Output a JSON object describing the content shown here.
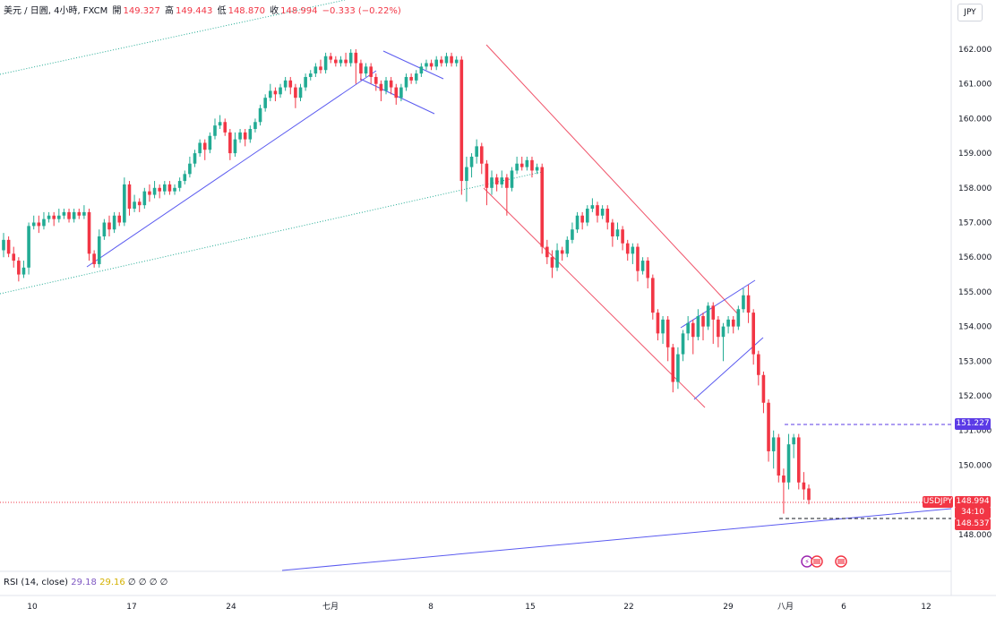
{
  "header": {
    "symbol_desc": "美元 / 日圓, 4小時, FXCM",
    "open_label": "開",
    "open_value": "149.327",
    "high_label": "高",
    "high_value": "149.443",
    "low_label": "低",
    "low_value": "148.870",
    "close_label": "收",
    "close_value": "148.994",
    "change_value": "−0.333 (−0.22%)"
  },
  "currency_button": "JPY",
  "rsi_label": {
    "name": "RSI (14, close)",
    "value1": "29.18",
    "value2": "29.16",
    "extra": "∅ ∅ ∅ ∅"
  },
  "price_tags": {
    "level_line": "151.227",
    "symbol": "USDJPY",
    "last_price": "148.994",
    "countdown": "34:10",
    "low_line": "148.537"
  },
  "colors": {
    "up": "#22ab94",
    "down": "#f23645",
    "blue": "#5b5bf0",
    "channel_red": "#f0546a",
    "dotted_green": "#22ab94",
    "level_purple": "#5b3be6"
  },
  "chart_data": {
    "type": "candlestick",
    "y_axis": {
      "ticks": [
        "162.000",
        "161.000",
        "160.000",
        "159.000",
        "158.000",
        "157.000",
        "156.000",
        "155.000",
        "154.000",
        "153.000",
        "152.000",
        "151.000",
        "150.000",
        "148.000"
      ],
      "range": [
        147.9,
        162.6
      ]
    },
    "x_axis": {
      "ticks": [
        "10",
        "17",
        "24",
        "七月",
        "8",
        "15",
        "22",
        "29",
        "八月",
        "6",
        "12"
      ]
    },
    "candles": [
      [
        0,
        156.2,
        156.5,
        156.7,
        156.0
      ],
      [
        1,
        156.5,
        156.1,
        156.6,
        156.0
      ],
      [
        2,
        156.1,
        155.9,
        156.3,
        155.7
      ],
      [
        3,
        155.9,
        155.5,
        156.0,
        155.3
      ],
      [
        4,
        155.5,
        155.7,
        155.9,
        155.4
      ],
      [
        5,
        155.7,
        156.9,
        157.0,
        155.5
      ],
      [
        6,
        156.9,
        157.0,
        157.2,
        156.8
      ],
      [
        7,
        157.0,
        156.9,
        157.2,
        156.7
      ],
      [
        8,
        156.9,
        157.1,
        157.3,
        156.8
      ],
      [
        9,
        157.1,
        157.2,
        157.3,
        157.0
      ],
      [
        10,
        157.2,
        157.1,
        157.3,
        156.9
      ],
      [
        11,
        157.1,
        157.2,
        157.4,
        157.0
      ],
      [
        12,
        157.2,
        157.3,
        157.4,
        157.1
      ],
      [
        13,
        157.3,
        157.1,
        157.4,
        157.0
      ],
      [
        14,
        157.1,
        157.3,
        157.4,
        157.0
      ],
      [
        15,
        157.3,
        157.2,
        157.4,
        157.1
      ],
      [
        16,
        157.2,
        157.3,
        157.5,
        157.1
      ],
      [
        17,
        157.3,
        156.1,
        157.4,
        155.9
      ],
      [
        18,
        156.1,
        155.8,
        156.2,
        155.7
      ],
      [
        19,
        155.8,
        156.6,
        156.8,
        155.7
      ],
      [
        20,
        156.6,
        157.0,
        157.1,
        156.5
      ],
      [
        21,
        157.0,
        156.8,
        157.2,
        156.6
      ],
      [
        22,
        156.8,
        157.2,
        157.3,
        156.7
      ],
      [
        23,
        157.2,
        157.0,
        157.3,
        156.9
      ],
      [
        24,
        157.0,
        158.1,
        158.3,
        156.9
      ],
      [
        25,
        158.1,
        157.4,
        158.2,
        157.2
      ],
      [
        26,
        157.4,
        157.6,
        157.8,
        157.3
      ],
      [
        27,
        157.6,
        157.5,
        157.7,
        157.3
      ],
      [
        28,
        157.5,
        157.9,
        158.0,
        157.4
      ],
      [
        29,
        157.9,
        157.8,
        158.1,
        157.6
      ],
      [
        30,
        157.8,
        158.0,
        158.2,
        157.7
      ],
      [
        31,
        158.0,
        157.9,
        158.1,
        157.7
      ],
      [
        32,
        157.9,
        158.1,
        158.2,
        157.8
      ],
      [
        33,
        158.1,
        157.9,
        158.2,
        157.8
      ],
      [
        34,
        157.9,
        158.0,
        158.1,
        157.8
      ],
      [
        35,
        158.0,
        158.2,
        158.3,
        157.9
      ],
      [
        36,
        158.2,
        158.4,
        158.5,
        158.1
      ],
      [
        37,
        158.4,
        158.7,
        158.9,
        158.3
      ],
      [
        38,
        158.7,
        159.0,
        159.1,
        158.6
      ],
      [
        39,
        159.0,
        159.3,
        159.4,
        158.9
      ],
      [
        40,
        159.3,
        159.1,
        159.4,
        158.8
      ],
      [
        41,
        159.1,
        159.5,
        159.6,
        159.0
      ],
      [
        42,
        159.5,
        159.8,
        160.0,
        159.4
      ],
      [
        43,
        159.8,
        159.9,
        160.1,
        159.7
      ],
      [
        44,
        159.9,
        159.6,
        160.0,
        159.5
      ],
      [
        45,
        159.6,
        159.0,
        159.7,
        158.8
      ],
      [
        46,
        159.0,
        159.4,
        159.6,
        158.9
      ],
      [
        47,
        159.4,
        159.6,
        159.7,
        159.3
      ],
      [
        48,
        159.6,
        159.4,
        159.7,
        159.2
      ],
      [
        49,
        159.4,
        159.7,
        159.8,
        159.3
      ],
      [
        50,
        159.7,
        159.9,
        160.0,
        159.6
      ],
      [
        51,
        159.9,
        160.3,
        160.4,
        159.8
      ],
      [
        52,
        160.3,
        160.6,
        160.7,
        160.2
      ],
      [
        53,
        160.6,
        160.8,
        161.0,
        160.5
      ],
      [
        54,
        160.8,
        160.7,
        160.9,
        160.5
      ],
      [
        55,
        160.7,
        160.9,
        161.0,
        160.6
      ],
      [
        56,
        160.9,
        161.1,
        161.2,
        160.8
      ],
      [
        57,
        161.1,
        160.9,
        161.2,
        160.7
      ],
      [
        58,
        160.9,
        160.6,
        161.0,
        160.3
      ],
      [
        59,
        160.6,
        160.9,
        161.0,
        160.5
      ],
      [
        60,
        160.9,
        161.2,
        161.3,
        160.8
      ],
      [
        61,
        161.2,
        161.3,
        161.4,
        161.1
      ],
      [
        62,
        161.3,
        161.5,
        161.6,
        161.2
      ],
      [
        63,
        161.5,
        161.4,
        161.7,
        161.3
      ],
      [
        64,
        161.4,
        161.8,
        161.9,
        161.3
      ],
      [
        65,
        161.8,
        161.7,
        161.9,
        161.6
      ],
      [
        66,
        161.7,
        161.6,
        161.8,
        161.5
      ],
      [
        67,
        161.6,
        161.7,
        161.8,
        161.5
      ],
      [
        68,
        161.7,
        161.6,
        161.9,
        161.5
      ],
      [
        69,
        161.6,
        161.9,
        162.0,
        161.5
      ],
      [
        70,
        161.9,
        161.6,
        162.0,
        161.0
      ],
      [
        71,
        161.6,
        161.3,
        161.7,
        161.1
      ],
      [
        72,
        161.3,
        161.5,
        161.6,
        161.2
      ],
      [
        73,
        161.5,
        161.2,
        161.6,
        161.0
      ],
      [
        74,
        161.2,
        161.0,
        161.3,
        160.8
      ],
      [
        75,
        161.0,
        160.8,
        161.1,
        160.5
      ],
      [
        76,
        160.8,
        161.1,
        161.2,
        160.7
      ],
      [
        77,
        161.1,
        160.9,
        161.2,
        160.7
      ],
      [
        78,
        160.9,
        160.6,
        161.0,
        160.4
      ],
      [
        79,
        160.6,
        160.9,
        161.0,
        160.5
      ],
      [
        80,
        160.9,
        161.2,
        161.3,
        160.8
      ],
      [
        81,
        161.2,
        161.1,
        161.3,
        161.0
      ],
      [
        82,
        161.1,
        161.3,
        161.4,
        161.0
      ],
      [
        83,
        161.3,
        161.5,
        161.6,
        161.2
      ],
      [
        84,
        161.5,
        161.6,
        161.7,
        161.4
      ],
      [
        85,
        161.6,
        161.5,
        161.7,
        161.4
      ],
      [
        86,
        161.5,
        161.7,
        161.8,
        161.4
      ],
      [
        87,
        161.7,
        161.6,
        161.8,
        161.5
      ],
      [
        88,
        161.6,
        161.8,
        161.9,
        161.5
      ],
      [
        89,
        161.8,
        161.6,
        161.9,
        161.5
      ],
      [
        90,
        161.6,
        161.7,
        161.8,
        161.5
      ],
      [
        91,
        161.7,
        158.2,
        161.8,
        157.8
      ],
      [
        92,
        158.2,
        158.6,
        158.9,
        157.6
      ],
      [
        93,
        158.6,
        158.9,
        159.0,
        158.3
      ],
      [
        94,
        158.9,
        159.2,
        159.4,
        158.7
      ],
      [
        95,
        159.2,
        158.7,
        159.3,
        158.4
      ],
      [
        96,
        158.7,
        158.0,
        158.8,
        157.5
      ],
      [
        97,
        158.0,
        158.3,
        158.5,
        157.8
      ],
      [
        98,
        158.3,
        158.1,
        158.4,
        157.9
      ],
      [
        99,
        158.1,
        158.3,
        158.5,
        158.0
      ],
      [
        100,
        158.3,
        158.0,
        158.4,
        157.2
      ],
      [
        101,
        158.0,
        158.5,
        158.6,
        157.9
      ],
      [
        102,
        158.5,
        158.7,
        158.9,
        158.4
      ],
      [
        103,
        158.7,
        158.6,
        158.9,
        158.5
      ],
      [
        104,
        158.6,
        158.8,
        158.9,
        158.5
      ],
      [
        105,
        158.8,
        158.5,
        158.9,
        158.3
      ],
      [
        106,
        158.5,
        158.6,
        158.7,
        158.4
      ],
      [
        107,
        158.6,
        156.3,
        158.7,
        156.1
      ],
      [
        108,
        156.3,
        156.0,
        156.5,
        155.8
      ],
      [
        109,
        156.0,
        155.7,
        156.2,
        155.4
      ],
      [
        110,
        155.7,
        156.2,
        156.4,
        155.6
      ],
      [
        111,
        156.2,
        156.1,
        156.3,
        155.9
      ],
      [
        112,
        156.1,
        156.5,
        156.6,
        156.0
      ],
      [
        113,
        156.5,
        156.8,
        157.0,
        156.4
      ],
      [
        114,
        156.8,
        157.2,
        157.3,
        156.7
      ],
      [
        115,
        157.2,
        157.0,
        157.3,
        156.8
      ],
      [
        116,
        157.0,
        157.4,
        157.5,
        156.9
      ],
      [
        117,
        157.4,
        157.5,
        157.7,
        157.3
      ],
      [
        118,
        157.5,
        157.2,
        157.6,
        157.0
      ],
      [
        119,
        157.2,
        157.4,
        157.5,
        157.1
      ],
      [
        120,
        157.4,
        157.0,
        157.5,
        156.8
      ],
      [
        121,
        157.0,
        156.6,
        157.1,
        156.3
      ],
      [
        122,
        156.6,
        156.8,
        157.0,
        156.5
      ],
      [
        123,
        156.8,
        156.4,
        156.9,
        156.2
      ],
      [
        124,
        156.4,
        156.1,
        156.5,
        155.9
      ],
      [
        125,
        156.1,
        156.3,
        156.4,
        155.8
      ],
      [
        126,
        156.3,
        155.6,
        156.4,
        155.3
      ],
      [
        127,
        155.6,
        155.9,
        156.0,
        155.5
      ],
      [
        128,
        155.9,
        155.4,
        156.0,
        155.1
      ],
      [
        129,
        155.4,
        154.4,
        155.5,
        154.2
      ],
      [
        130,
        154.4,
        153.8,
        154.5,
        153.6
      ],
      [
        131,
        153.8,
        154.2,
        154.3,
        153.5
      ],
      [
        132,
        154.2,
        153.4,
        154.3,
        153.0
      ],
      [
        133,
        153.4,
        152.4,
        153.5,
        152.1
      ],
      [
        134,
        152.4,
        153.2,
        153.4,
        152.2
      ],
      [
        135,
        153.2,
        153.8,
        153.9,
        153.0
      ],
      [
        136,
        153.8,
        154.1,
        154.3,
        153.6
      ],
      [
        137,
        154.1,
        153.7,
        154.2,
        153.2
      ],
      [
        138,
        153.7,
        154.3,
        154.5,
        153.6
      ],
      [
        139,
        154.3,
        154.0,
        154.4,
        153.6
      ],
      [
        140,
        154.0,
        154.6,
        154.7,
        153.9
      ],
      [
        141,
        154.6,
        154.2,
        154.7,
        153.5
      ],
      [
        142,
        154.2,
        153.7,
        154.3,
        153.4
      ],
      [
        143,
        153.7,
        154.0,
        154.1,
        153.0
      ],
      [
        144,
        154.0,
        154.2,
        154.3,
        153.8
      ],
      [
        145,
        154.2,
        154.0,
        154.3,
        153.8
      ],
      [
        146,
        154.0,
        154.5,
        154.6,
        153.9
      ],
      [
        147,
        154.5,
        154.9,
        155.1,
        154.4
      ],
      [
        148,
        154.9,
        154.4,
        155.2,
        154.1
      ],
      [
        149,
        154.4,
        153.2,
        154.5,
        152.9
      ],
      [
        150,
        153.2,
        152.6,
        153.3,
        152.3
      ],
      [
        151,
        152.6,
        151.8,
        152.7,
        151.5
      ],
      [
        152,
        151.8,
        150.4,
        151.9,
        150.1
      ],
      [
        153,
        150.4,
        150.8,
        151.0,
        149.9
      ],
      [
        154,
        150.8,
        149.7,
        150.9,
        149.5
      ],
      [
        155,
        149.7,
        149.5,
        149.9,
        148.6
      ],
      [
        156,
        149.5,
        150.6,
        150.9,
        149.3
      ],
      [
        157,
        150.6,
        150.8,
        150.9,
        150.2
      ],
      [
        158,
        150.8,
        149.5,
        150.9,
        149.3
      ],
      [
        159,
        149.5,
        149.3,
        149.8,
        149.0
      ],
      [
        160,
        149.327,
        148.994,
        149.443,
        148.87
      ]
    ]
  }
}
